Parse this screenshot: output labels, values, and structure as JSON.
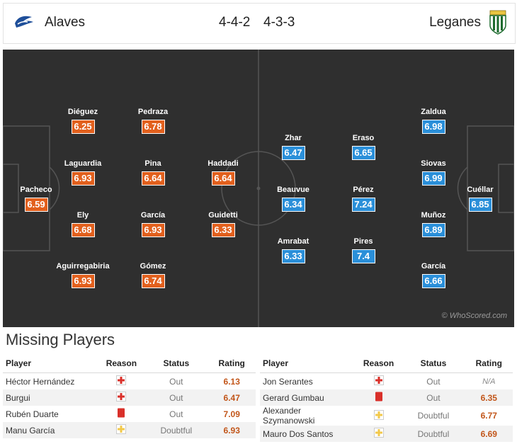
{
  "header": {
    "home_team": "Alaves",
    "home_formation": "4-4-2",
    "away_formation": "4-3-3",
    "away_team": "Leganes"
  },
  "colors": {
    "home_rating": "#e2601d",
    "away_rating": "#2a8fd9",
    "pitch": "#2f2f2f"
  },
  "home_players": [
    {
      "name": "Pacheco",
      "rating": "6.59"
    },
    {
      "name": "Diéguez",
      "rating": "6.25"
    },
    {
      "name": "Laguardia",
      "rating": "6.93"
    },
    {
      "name": "Ely",
      "rating": "6.68"
    },
    {
      "name": "Aguirregabiria",
      "rating": "6.93"
    },
    {
      "name": "Pedraza",
      "rating": "6.78"
    },
    {
      "name": "Pina",
      "rating": "6.64"
    },
    {
      "name": "García",
      "rating": "6.93"
    },
    {
      "name": "Gómez",
      "rating": "6.74"
    },
    {
      "name": "Haddadi",
      "rating": "6.64"
    },
    {
      "name": "Guidetti",
      "rating": "6.33"
    }
  ],
  "away_players": [
    {
      "name": "Zhar",
      "rating": "6.47"
    },
    {
      "name": "Beauvue",
      "rating": "6.34"
    },
    {
      "name": "Amrabat",
      "rating": "6.33"
    },
    {
      "name": "Eraso",
      "rating": "6.65"
    },
    {
      "name": "Pérez",
      "rating": "7.24"
    },
    {
      "name": "Pires",
      "rating": "7.4"
    },
    {
      "name": "Zaldua",
      "rating": "6.98"
    },
    {
      "name": "Siovas",
      "rating": "6.99"
    },
    {
      "name": "Muñoz",
      "rating": "6.89"
    },
    {
      "name": "García",
      "rating": "6.66"
    },
    {
      "name": "Cuéllar",
      "rating": "6.85"
    }
  ],
  "watermark": "© WhoScored.com",
  "missing": {
    "title": "Missing Players",
    "columns": [
      "Player",
      "Reason",
      "Status",
      "Rating"
    ],
    "home": [
      {
        "player": "Héctor Hernández",
        "reason_icon": "injury-icon",
        "status": "Out",
        "rating": "6.13"
      },
      {
        "player": "Burgui",
        "reason_icon": "injury-icon",
        "status": "Out",
        "rating": "6.47"
      },
      {
        "player": "Rubén Duarte",
        "reason_icon": "red-card-icon",
        "status": "Out",
        "rating": "7.09"
      },
      {
        "player": "Manu García",
        "reason_icon": "doubtful-icon",
        "status": "Doubtful",
        "rating": "6.93"
      }
    ],
    "away": [
      {
        "player": "Jon Serantes",
        "reason_icon": "injury-icon",
        "status": "Out",
        "rating": "N/A"
      },
      {
        "player": "Gerard Gumbau",
        "reason_icon": "red-card-icon",
        "status": "Out",
        "rating": "6.35"
      },
      {
        "player": "Alexander Szymanowski",
        "reason_icon": "doubtful-icon",
        "status": "Doubtful",
        "rating": "6.77"
      },
      {
        "player": "Mauro Dos Santos",
        "reason_icon": "doubtful-icon",
        "status": "Doubtful",
        "rating": "6.69"
      }
    ]
  }
}
